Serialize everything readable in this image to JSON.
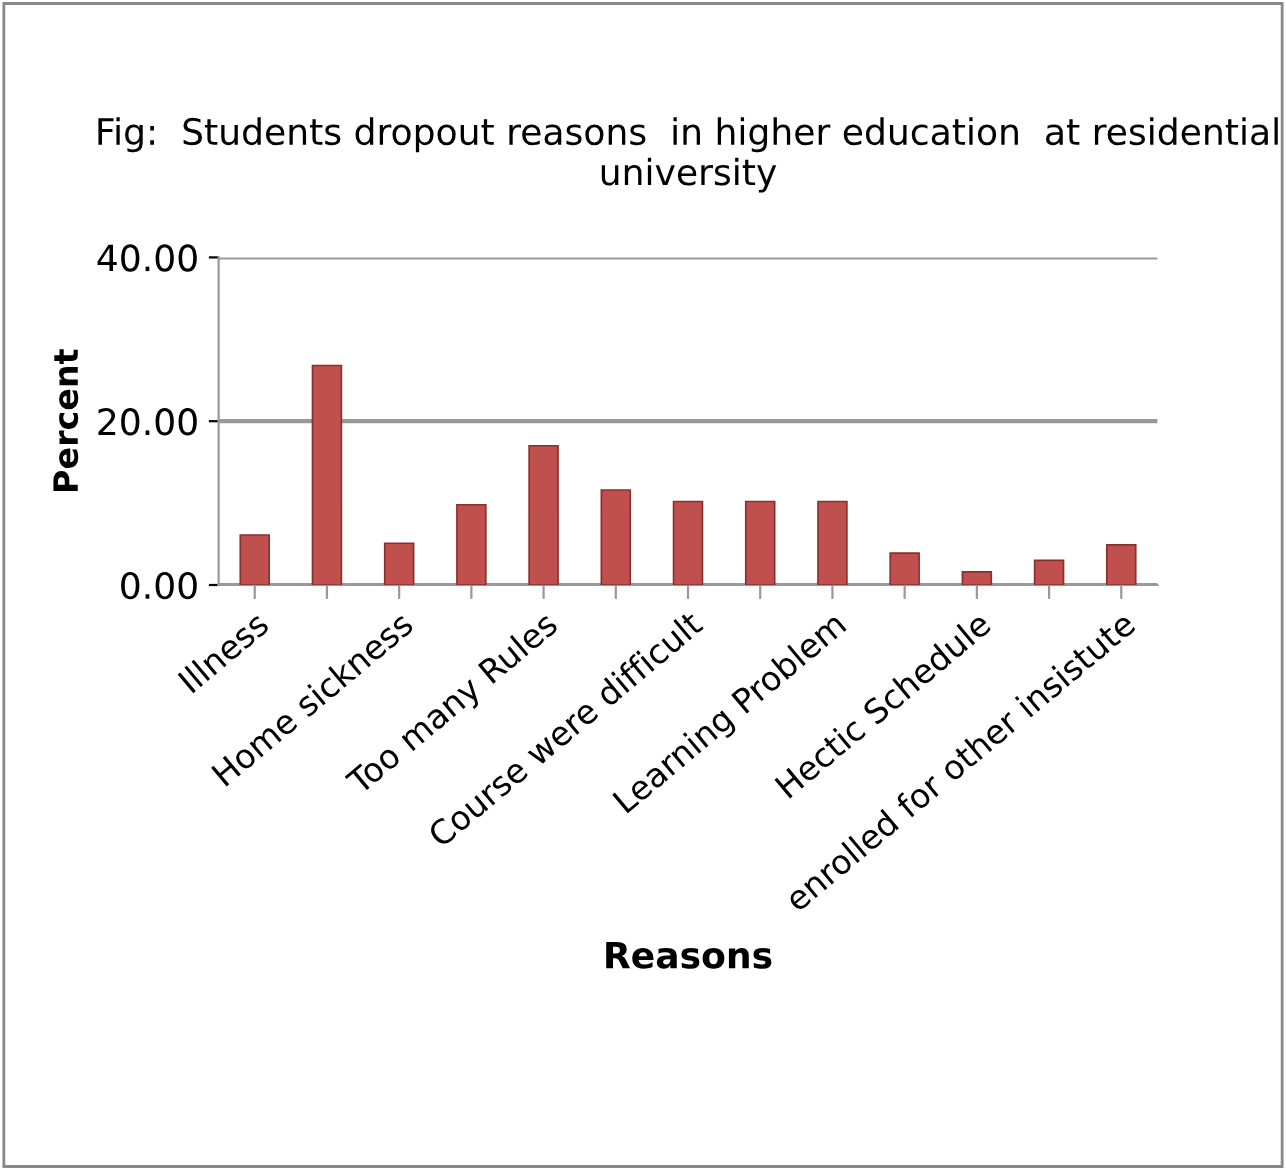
{
  "chart_data": {
    "type": "bar",
    "title": "Fig:  Students dropout reasons  in higher education  at residential university",
    "xlabel": "Reasons",
    "ylabel": "Percent",
    "categories": [
      "Illness",
      null,
      "Home sickness",
      null,
      "Too many Rules",
      null,
      "Course were difficult",
      null,
      "Learning Problem",
      null,
      "Hectic Schedule",
      null,
      "enrolled for other insistute"
    ],
    "values": [
      6.1,
      26.8,
      5.1,
      9.8,
      17.0,
      11.6,
      10.2,
      10.2,
      10.2,
      3.9,
      1.6,
      3.0,
      4.9
    ],
    "color": "#c0504d",
    "ylim": [
      0,
      40
    ],
    "yticks": [
      {
        "value": 0,
        "label": "0.00"
      },
      {
        "value": 20,
        "label": "20.00"
      },
      {
        "value": 40,
        "label": "40.00"
      }
    ],
    "grid": "y",
    "legend": false
  }
}
